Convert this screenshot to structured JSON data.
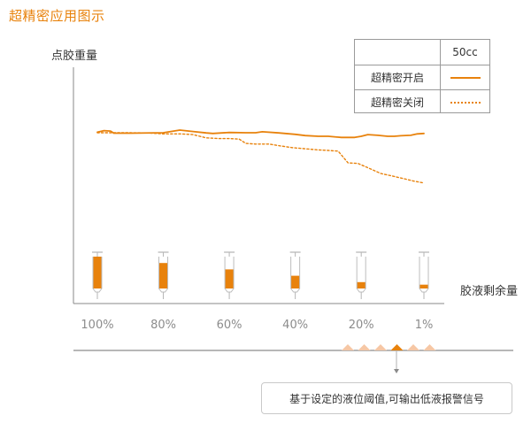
{
  "page_title": "超精密应用图示",
  "chart_data": {
    "type": "line",
    "ylabel": "点胶重量",
    "xlabel": "胶液剩余量",
    "categories": [
      "100%",
      "80%",
      "60%",
      "40%",
      "20%",
      "1%"
    ],
    "glue_levels": [
      100,
      80,
      60,
      40,
      20,
      1
    ],
    "legend": {
      "header": "50cc",
      "position": "top-right"
    },
    "series": [
      {
        "name": "超精密开启",
        "style": "solid",
        "color": "#e8820c",
        "x": [
          100,
          98,
          96,
          95,
          90,
          80,
          75,
          71,
          67,
          65,
          60,
          55,
          52,
          50,
          45,
          40,
          37,
          33,
          30,
          26,
          22,
          20,
          18,
          15,
          12,
          10,
          8,
          5,
          3,
          1
        ],
        "y": [
          72.5,
          73.2,
          73.0,
          72.1,
          72.1,
          72.3,
          73.4,
          72.8,
          72.2,
          72.0,
          72.4,
          72.3,
          72.3,
          72.7,
          72.2,
          71.6,
          71.1,
          70.8,
          70.8,
          70.3,
          70.3,
          70.8,
          71.5,
          71.2,
          70.8,
          70.8,
          71.0,
          71.2,
          71.8,
          72.0
        ]
      },
      {
        "name": "超精密关闭",
        "style": "dotted",
        "color": "#e8820c",
        "x": [
          100,
          95,
          90,
          85,
          80,
          75,
          71,
          67,
          63,
          60,
          57,
          55,
          52,
          48,
          45,
          41,
          37,
          33,
          30,
          27,
          24,
          21,
          18,
          14,
          10,
          7,
          4,
          1
        ],
        "y": [
          72.3,
          72.3,
          72.3,
          72.2,
          71.8,
          71.8,
          71.5,
          70.1,
          69.8,
          69.8,
          69.6,
          67.8,
          67.5,
          67.5,
          66.8,
          66.0,
          65.5,
          65.0,
          64.8,
          64.5,
          59.5,
          59.3,
          57.5,
          55.0,
          53.8,
          52.8,
          51.8,
          51.0
        ]
      }
    ],
    "ylim": [
      0,
      100
    ],
    "grid": false
  },
  "markers": {
    "active_index": 3,
    "count": 6
  },
  "notice_text": "基于设定的液位阈值,可输出低液报警信号"
}
